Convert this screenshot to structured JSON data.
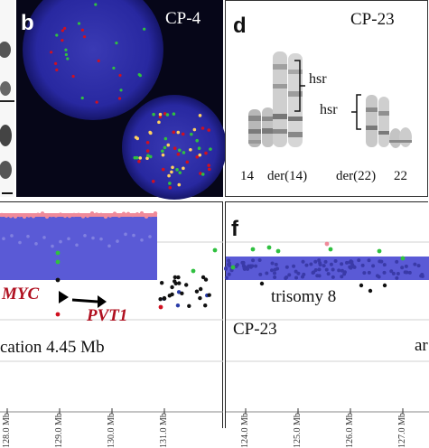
{
  "panel_b": {
    "letter": "b",
    "sample": "CP-4"
  },
  "panel_d": {
    "letter": "d",
    "sample": "CP-23",
    "hsr_upper": "hsr",
    "hsr_lower": "hsr",
    "chromosome_labels": [
      "14",
      "der(14)",
      "der(22)",
      "22"
    ]
  },
  "panel_e": {
    "gene1": "MYC",
    "gene2": "PVT1",
    "amplification_text": "cation 4.45 Mb",
    "ticks": [
      "128.0 Mb",
      "129.0 Mb",
      "130.0 Mb",
      "131.0 Mb"
    ]
  },
  "panel_f": {
    "letter": "f",
    "trisomy_text": "trisomy 8",
    "sample": "CP-23",
    "cut_text": "ar",
    "ticks": [
      "124.0 Mb",
      "125.0 Mb",
      "126.0 Mb",
      "127.0 Mb"
    ]
  },
  "colors": {
    "fish_background": "#060618",
    "nucleus": "#2a2aa0",
    "band_blue": "#5a5ad6",
    "red": "#d01020",
    "green": "#30c040",
    "pink": "#f08a9a",
    "gene_label": "#b01020"
  }
}
